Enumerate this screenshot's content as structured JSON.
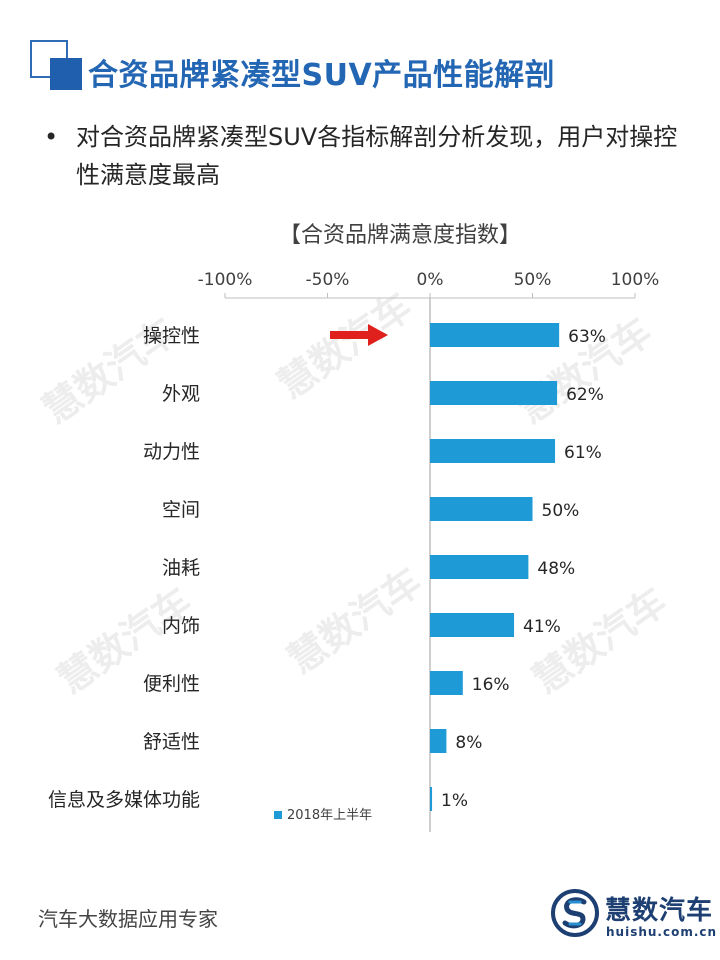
{
  "header": {
    "title": "合资品牌紧凑型SUV产品性能解剖"
  },
  "bullet": {
    "marker": "•",
    "text": "对合资品牌紧凑型SUV各指标解剖分析发现，用户对操控性满意度最高"
  },
  "chart_data": {
    "type": "bar",
    "orientation": "horizontal",
    "title": "【合资品牌满意度指数】",
    "categories": [
      "操控性",
      "外观",
      "动力性",
      "空间",
      "油耗",
      "内饰",
      "便利性",
      "舒适性",
      "信息及多媒体功能"
    ],
    "series": [
      {
        "name": "2018年上半年",
        "values": [
          63,
          62,
          61,
          50,
          48,
          41,
          16,
          8,
          1
        ]
      }
    ],
    "value_labels": [
      "63%",
      "62%",
      "61%",
      "50%",
      "48%",
      "41%",
      "16%",
      "8%",
      "1%"
    ],
    "xlim": [
      -100,
      100
    ],
    "x_ticks": [
      -100,
      -50,
      0,
      50,
      100
    ],
    "x_tick_labels": [
      "-100%",
      "-50%",
      "0%",
      "50%",
      "100%"
    ],
    "axis_position": "top",
    "legend_position": "bottom",
    "highlight_category": "操控性",
    "grid": false,
    "colors": {
      "bar": "#1e9ad6",
      "arrow": "#e0201c",
      "axis": "#bfbfbf"
    }
  },
  "watermark": "慧数汽车",
  "footer": {
    "text": "汽车大数据应用专家"
  },
  "logo": {
    "name": "慧数汽车",
    "url": "huishu.com.cn",
    "color": "#1d3f72"
  }
}
